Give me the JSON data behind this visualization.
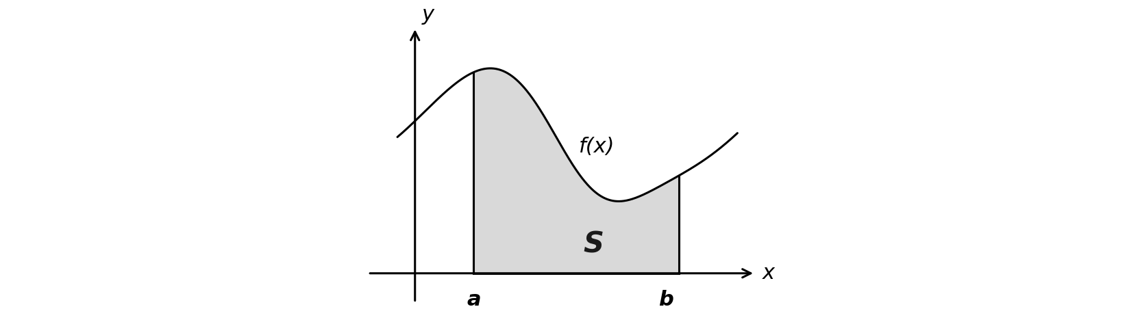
{
  "figsize": [
    16.65,
    4.71
  ],
  "dpi": 100,
  "background_color": "#ffffff",
  "fill_color": "#d9d9d9",
  "curve_color": "#000000",
  "axis_color": "#000000",
  "line_width": 2.2,
  "a_x": 1.0,
  "b_x": 4.5,
  "x_axis_left": -0.8,
  "x_axis_right": 5.8,
  "y_axis_bottom": -0.5,
  "y_axis_top": 4.2,
  "label_a": "a",
  "label_b": "b",
  "label_x": "x",
  "label_y": "y",
  "label_fx": "f(x)",
  "label_S": "S",
  "label_fontsize": 22,
  "S_fontsize": 30,
  "arrow_mutation_scale": 22
}
